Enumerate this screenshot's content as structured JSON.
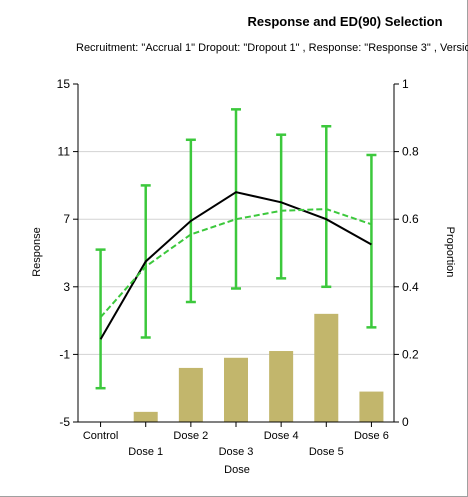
{
  "chart_data": {
    "type": "bar",
    "title": "Response and ED(90) Selection",
    "subtitle": "Recruitment: \"Accrual 1\" Dropout: \"Dropout 1\" , Response: \"Response 3\" , Versio",
    "xlabel": "Dose",
    "ylabel": "Response",
    "y2label": "Proportion",
    "categories": [
      "Control",
      "Dose 1",
      "Dose 2",
      "Dose 3",
      "Dose 4",
      "Dose 5",
      "Dose 6"
    ],
    "ylim": [
      -5,
      15
    ],
    "yticks": [
      "15",
      "11",
      "7",
      "3",
      "-1",
      "-5"
    ],
    "y2lim": [
      0,
      1
    ],
    "y2ticks": [
      "1",
      "0.8",
      "0.6",
      "0.4",
      "0.2",
      "0"
    ],
    "grid": true,
    "series": [
      {
        "type": "line",
        "style": "solid",
        "color": "#000000",
        "values": [
          -0.1,
          4.5,
          6.9,
          8.6,
          8.0,
          7.0,
          5.5
        ]
      },
      {
        "type": "line",
        "style": "dashed",
        "color": "#3cc83c",
        "values": [
          1.2,
          4.2,
          6.1,
          7.0,
          7.5,
          7.6,
          6.7
        ]
      },
      {
        "type": "errorbar",
        "color": "#3cc83c",
        "low": [
          -3.0,
          0.0,
          2.1,
          2.9,
          3.5,
          3.0,
          0.6
        ],
        "high": [
          5.2,
          9.0,
          11.7,
          13.5,
          12.0,
          12.5,
          10.8
        ]
      },
      {
        "type": "bar",
        "axis": "y2",
        "color": "#c2b66c",
        "values": [
          0,
          0.03,
          0.16,
          0.19,
          0.21,
          0.32,
          0.09
        ]
      }
    ]
  }
}
